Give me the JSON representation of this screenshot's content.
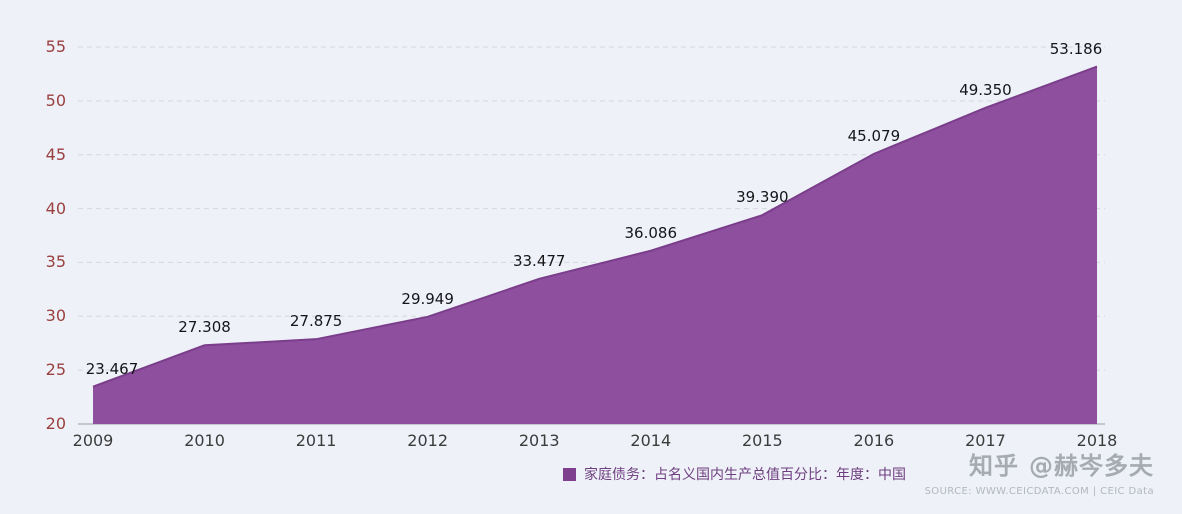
{
  "chart_data": {
    "type": "area",
    "title": "",
    "xlabel": "",
    "ylabel": "",
    "categories": [
      "2009",
      "2010",
      "2011",
      "2012",
      "2013",
      "2014",
      "2015",
      "2016",
      "2017",
      "2018"
    ],
    "series": [
      {
        "name": "家庭债务：占名义国内生产总值百分比：年度：中国",
        "values": [
          23.467,
          27.308,
          27.875,
          29.949,
          33.477,
          36.086,
          39.39,
          45.079,
          49.35,
          53.186
        ]
      }
    ],
    "data_labels": [
      "23.467",
      "27.308",
      "27.875",
      "29.949",
      "33.477",
      "36.086",
      "39.390",
      "45.079",
      "49.350",
      "53.186"
    ],
    "y_ticks": [
      20,
      25,
      30,
      35,
      40,
      45,
      50,
      55
    ],
    "ylim": [
      20,
      55
    ],
    "grid": "horizontal-dashed",
    "legend_position": "bottom-center",
    "colors": {
      "area_fill": "#8d4f9e",
      "area_line": "#7a3e8b",
      "ytick_text": "#9a4040",
      "xtick_text": "#3c3c3c",
      "background": "#eef1f7"
    }
  },
  "legend": {
    "label": "家庭债务：占名义国内生产总值百分比：年度：中国",
    "swatch_color": "#7e3f8f"
  },
  "watermark": {
    "brand": "知乎",
    "handle": "@赫岑多夫"
  },
  "source": {
    "text": "SOURCE: WWW.CEICDATA.COM | CEIC Data"
  }
}
